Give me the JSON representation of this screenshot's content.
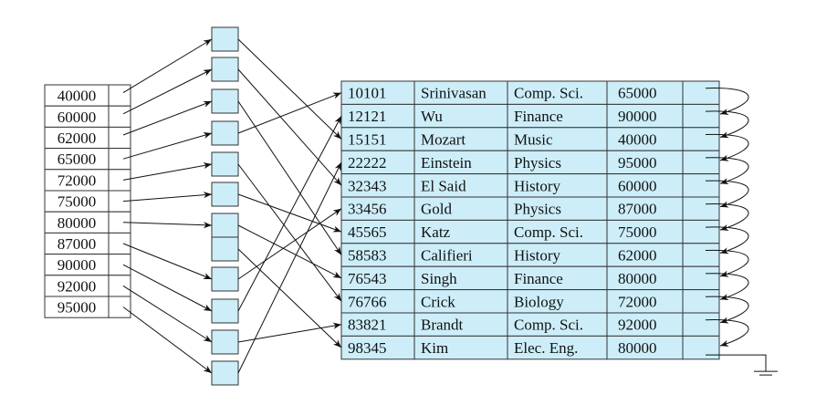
{
  "colors": {
    "cell_fill": "#cdeef9",
    "stroke": "#333333"
  },
  "index_entries": [
    "40000",
    "60000",
    "62000",
    "65000",
    "72000",
    "75000",
    "80000",
    "87000",
    "90000",
    "92000",
    "95000"
  ],
  "buckets": [
    {
      "key": "40000",
      "targets": [
        2
      ]
    },
    {
      "key": "60000",
      "targets": [
        4
      ]
    },
    {
      "key": "62000",
      "targets": [
        7
      ]
    },
    {
      "key": "65000",
      "targets": [
        0
      ]
    },
    {
      "key": "72000",
      "targets": [
        9
      ]
    },
    {
      "key": "75000",
      "targets": [
        6
      ]
    },
    {
      "key": "80000",
      "targets": [
        8,
        11
      ]
    },
    {
      "key": "87000",
      "targets": [
        5
      ]
    },
    {
      "key": "90000",
      "targets": [
        1
      ]
    },
    {
      "key": "92000",
      "targets": [
        10
      ]
    },
    {
      "key": "95000",
      "targets": [
        3
      ]
    }
  ],
  "records": [
    [
      "10101",
      "Srinivasan",
      "Comp. Sci.",
      "65000"
    ],
    [
      "12121",
      "Wu",
      "Finance",
      "90000"
    ],
    [
      "15151",
      "Mozart",
      "Music",
      "40000"
    ],
    [
      "22222",
      "Einstein",
      "Physics",
      "95000"
    ],
    [
      "32343",
      "El Said",
      "History",
      "60000"
    ],
    [
      "33456",
      "Gold",
      "Physics",
      "87000"
    ],
    [
      "45565",
      "Katz",
      "Comp. Sci.",
      "75000"
    ],
    [
      "58583",
      "Califieri",
      "History",
      "62000"
    ],
    [
      "76543",
      "Singh",
      "Finance",
      "80000"
    ],
    [
      "76766",
      "Crick",
      "Biology",
      "72000"
    ],
    [
      "83821",
      "Brandt",
      "Comp. Sci.",
      "92000"
    ],
    [
      "98345",
      "Kim",
      "Elec. Eng.",
      "80000"
    ]
  ]
}
